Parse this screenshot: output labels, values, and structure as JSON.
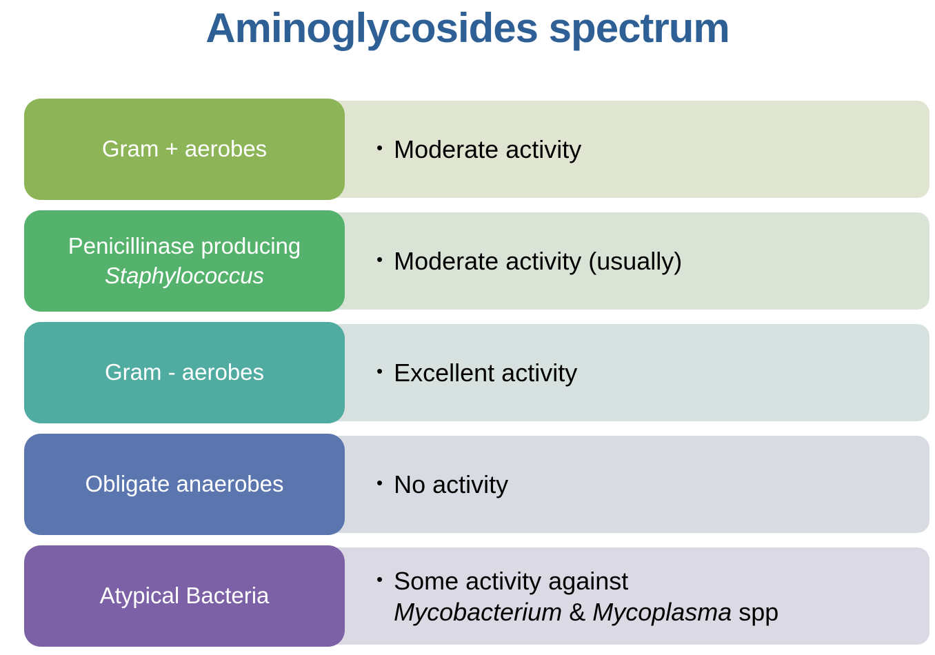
{
  "title": "Aminoglycosides spectrum",
  "colors": {
    "title": "#2E6096",
    "background": "#FFFFFF",
    "label_text": "#FFFFFF",
    "content_text": "#000000"
  },
  "bullet_glyph": "•",
  "rows": [
    {
      "id": "gram-positive-aerobes",
      "label_color": "#8DB457",
      "content_color": "#DFE5D0",
      "label_lines": [
        [
          {
            "text": "Gram + aerobes",
            "italic": false
          }
        ]
      ],
      "content_lines": [
        [
          {
            "text": "Moderate activity",
            "italic": false
          }
        ]
      ]
    },
    {
      "id": "penicillinase-producing-staphylococcus",
      "label_color": "#55B26C",
      "content_color": "#D9E4D6",
      "label_lines": [
        [
          {
            "text": "Penicillinase producing",
            "italic": false
          }
        ],
        [
          {
            "text": "Staphylococcus",
            "italic": true
          }
        ]
      ],
      "content_lines": [
        [
          {
            "text": "Moderate activity (usually)",
            "italic": false
          }
        ]
      ]
    },
    {
      "id": "gram-negative-aerobes",
      "label_color": "#50ABA0",
      "content_color": "#D7E1E0",
      "label_lines": [
        [
          {
            "text": "Gram - aerobes",
            "italic": false
          }
        ]
      ],
      "content_lines": [
        [
          {
            "text": "Excellent activity",
            "italic": false
          }
        ]
      ]
    },
    {
      "id": "obligate-anaerobes",
      "label_color": "#5B76AE",
      "content_color": "#D9DBE3",
      "label_lines": [
        [
          {
            "text": "Obligate anaerobes",
            "italic": false
          }
        ]
      ],
      "content_lines": [
        [
          {
            "text": "No activity",
            "italic": false
          }
        ]
      ]
    },
    {
      "id": "atypical-bacteria",
      "label_color": "#7D61A6",
      "content_color": "#DBD9E3",
      "label_lines": [
        [
          {
            "text": "Atypical Bacteria",
            "italic": false
          }
        ]
      ],
      "content_lines": [
        [
          {
            "text": "Some activity against",
            "italic": false
          }
        ],
        [
          {
            "text": "Mycobacterium",
            "italic": true
          },
          {
            "text": " & ",
            "italic": false
          },
          {
            "text": "Mycoplasma",
            "italic": true
          },
          {
            "text": " spp",
            "italic": false
          }
        ]
      ]
    }
  ]
}
